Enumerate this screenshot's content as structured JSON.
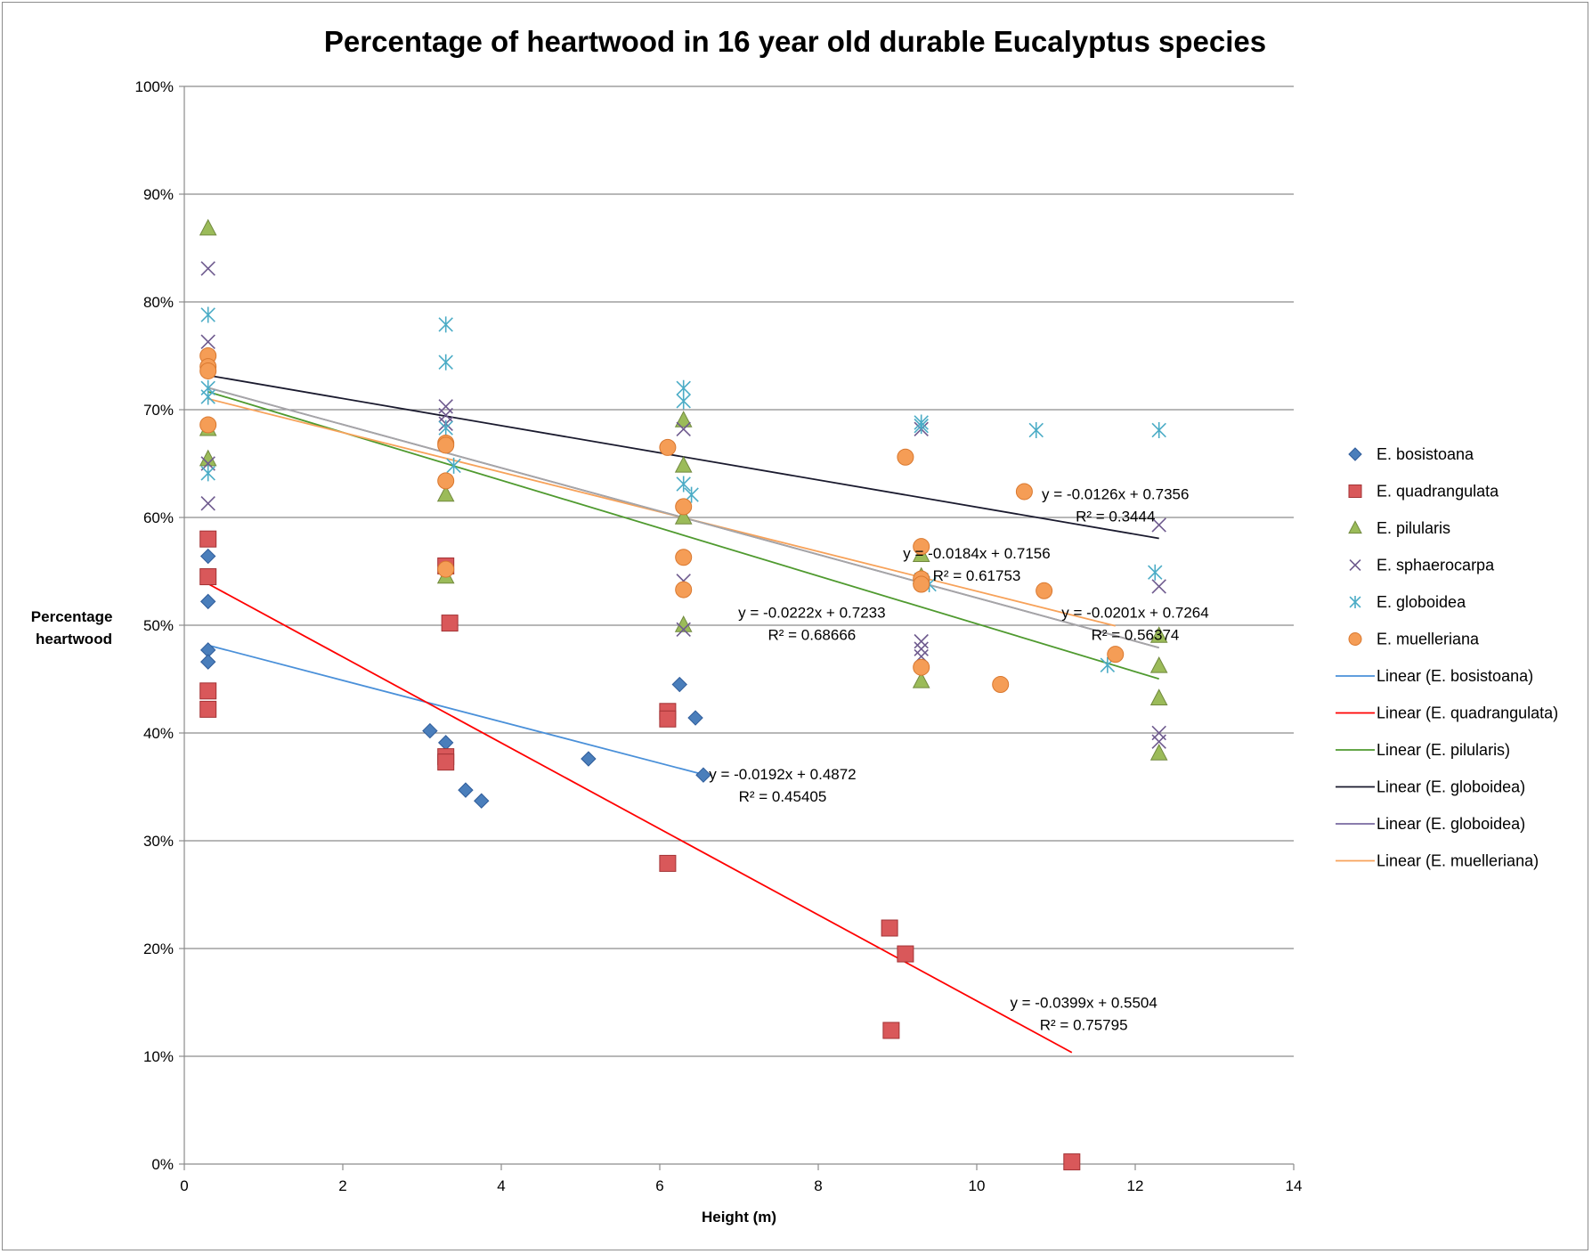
{
  "chart_data": {
    "type": "scatter",
    "title": "Percentage of heartwood in 16 year old durable Eucalyptus species",
    "xlabel": "Height (m)",
    "ylabel_lines": [
      "Percentage",
      "heartwood"
    ],
    "xlim": [
      0,
      14
    ],
    "ylim": [
      0,
      1
    ],
    "x_ticks": [
      0,
      2,
      4,
      6,
      8,
      10,
      12,
      14
    ],
    "x_tick_labels": [
      "0",
      "2",
      "4",
      "6",
      "8",
      "10",
      "12",
      "14"
    ],
    "y_ticks": [
      0,
      0.1,
      0.2,
      0.3,
      0.4,
      0.5,
      0.6,
      0.7,
      0.8,
      0.9,
      1.0
    ],
    "y_tick_labels": [
      "0%",
      "10%",
      "20%",
      "30%",
      "40%",
      "50%",
      "60%",
      "70%",
      "80%",
      "90%",
      "100%"
    ],
    "grid": "horizontal",
    "legend_position": "right",
    "series": [
      {
        "name": "E. bosistoana",
        "marker": "diamond",
        "color": "#4a7ebb",
        "stroke": "#2f5c9a",
        "points": [
          [
            0.3,
            0.564
          ],
          [
            0.3,
            0.522
          ],
          [
            0.3,
            0.477
          ],
          [
            0.3,
            0.466
          ],
          [
            3.1,
            0.402
          ],
          [
            3.3,
            0.391
          ],
          [
            3.55,
            0.347
          ],
          [
            3.75,
            0.337
          ],
          [
            5.1,
            0.376
          ],
          [
            6.25,
            0.445
          ],
          [
            6.45,
            0.414
          ],
          [
            6.55,
            0.361
          ]
        ]
      },
      {
        "name": "E. quadrangulata",
        "marker": "square",
        "color": "#d9585a",
        "stroke": "#a33335",
        "points": [
          [
            0.3,
            0.58
          ],
          [
            0.3,
            0.545
          ],
          [
            0.3,
            0.439
          ],
          [
            0.3,
            0.422
          ],
          [
            3.3,
            0.555
          ],
          [
            3.35,
            0.502
          ],
          [
            3.3,
            0.378
          ],
          [
            3.3,
            0.373
          ],
          [
            6.1,
            0.42
          ],
          [
            6.1,
            0.413
          ],
          [
            6.1,
            0.279
          ],
          [
            8.9,
            0.219
          ],
          [
            9.1,
            0.195
          ],
          [
            8.92,
            0.124
          ],
          [
            11.2,
            0.002
          ]
        ]
      },
      {
        "name": "E. pilularis",
        "marker": "triangle",
        "color": "#9bbb59",
        "stroke": "#71893f",
        "points": [
          [
            0.3,
            0.868
          ],
          [
            0.3,
            0.682
          ],
          [
            0.3,
            0.654
          ],
          [
            3.3,
            0.621
          ],
          [
            3.3,
            0.545
          ],
          [
            6.3,
            0.69
          ],
          [
            6.3,
            0.648
          ],
          [
            6.3,
            0.6
          ],
          [
            6.3,
            0.5
          ],
          [
            9.3,
            0.565
          ],
          [
            9.3,
            0.545
          ],
          [
            9.3,
            0.448
          ],
          [
            12.3,
            0.49
          ],
          [
            12.3,
            0.462
          ],
          [
            12.3,
            0.432
          ],
          [
            12.3,
            0.381
          ]
        ]
      },
      {
        "name": "E. sphaerocarpa",
        "marker": "x",
        "color": "#6e5a8e",
        "stroke": "#6e5a8e",
        "points": [
          [
            0.3,
            0.831
          ],
          [
            0.3,
            0.763
          ],
          [
            0.3,
            0.65
          ],
          [
            0.3,
            0.613
          ],
          [
            3.3,
            0.703
          ],
          [
            3.3,
            0.695
          ],
          [
            3.3,
            0.687
          ],
          [
            6.3,
            0.682
          ],
          [
            6.3,
            0.541
          ],
          [
            6.3,
            0.496
          ],
          [
            9.3,
            0.682
          ],
          [
            9.3,
            0.485
          ],
          [
            9.3,
            0.478
          ],
          [
            9.3,
            0.471
          ],
          [
            12.3,
            0.593
          ],
          [
            12.3,
            0.536
          ],
          [
            12.3,
            0.4
          ],
          [
            12.3,
            0.392
          ]
        ]
      },
      {
        "name": "E. globoidea",
        "marker": "star",
        "color": "#4bacc6",
        "stroke": "#4bacc6",
        "points": [
          [
            0.3,
            0.788
          ],
          [
            0.3,
            0.72
          ],
          [
            0.3,
            0.712
          ],
          [
            0.3,
            0.641
          ],
          [
            3.3,
            0.779
          ],
          [
            3.3,
            0.744
          ],
          [
            3.4,
            0.648
          ],
          [
            3.3,
            0.683
          ],
          [
            6.3,
            0.72
          ],
          [
            6.3,
            0.708
          ],
          [
            6.3,
            0.631
          ],
          [
            6.4,
            0.621
          ],
          [
            9.3,
            0.688
          ],
          [
            9.3,
            0.685
          ],
          [
            9.3,
            0.542
          ],
          [
            9.4,
            0.538
          ],
          [
            10.75,
            0.681
          ],
          [
            11.65,
            0.463
          ],
          [
            12.25,
            0.549
          ],
          [
            12.3,
            0.681
          ]
        ]
      },
      {
        "name": "E. muelleriana",
        "marker": "circle",
        "color": "#f59d56",
        "stroke": "#d9782f",
        "points": [
          [
            0.3,
            0.75
          ],
          [
            0.3,
            0.74
          ],
          [
            0.3,
            0.736
          ],
          [
            0.3,
            0.686
          ],
          [
            3.3,
            0.669
          ],
          [
            3.3,
            0.667
          ],
          [
            3.3,
            0.634
          ],
          [
            3.3,
            0.552
          ],
          [
            6.1,
            0.665
          ],
          [
            6.3,
            0.61
          ],
          [
            6.3,
            0.563
          ],
          [
            6.3,
            0.533
          ],
          [
            9.1,
            0.656
          ],
          [
            9.3,
            0.573
          ],
          [
            9.3,
            0.543
          ],
          [
            9.3,
            0.538
          ],
          [
            9.3,
            0.461
          ],
          [
            10.3,
            0.445
          ],
          [
            10.6,
            0.624
          ],
          [
            10.85,
            0.532
          ],
          [
            11.75,
            0.473
          ]
        ]
      }
    ],
    "trendlines": [
      {
        "name": "Linear (E. bosistoana)",
        "color": "#4a90d9",
        "slope": -0.0192,
        "intercept": 0.4872,
        "x_range": [
          0.3,
          6.55
        ]
      },
      {
        "name": "Linear (E. quadrangulata)",
        "color": "#ff0000",
        "slope": -0.0399,
        "intercept": 0.5504,
        "x_range": [
          0.3,
          11.2
        ]
      },
      {
        "name": "Linear (E. pilularis)",
        "color": "#4f9a2f",
        "slope": -0.0222,
        "intercept": 0.7233,
        "x_range": [
          0.3,
          12.3
        ]
      },
      {
        "name": "Linear (E. globoidea)",
        "color": "#1a1a2e",
        "slope": -0.0126,
        "intercept": 0.7356,
        "x_range": [
          0.3,
          12.3
        ]
      },
      {
        "name": "Linear (E. globoidea)",
        "color": "#7a6aa0",
        "slope": -0.0201,
        "intercept": 0.7264,
        "x_range": [
          0.3,
          12.3
        ]
      },
      {
        "name": "Linear (E. muelleriana)",
        "color": "#f7a25a",
        "slope": -0.0184,
        "intercept": 0.7156,
        "x_range": [
          0.3,
          11.75
        ]
      },
      {
        "name": "",
        "color": "#a6a6a6",
        "slope": -0.0201,
        "intercept": 0.7264,
        "x_range": [
          0.3,
          12.3
        ]
      }
    ],
    "equation_labels": [
      {
        "equation": "y = -0.0126x + 0.7356",
        "r2": "R² = 0.3444",
        "at": [
          11.75,
          0.617
        ],
        "anchor": "middle"
      },
      {
        "equation": "y = -0.0184x + 0.7156",
        "r2": "R² = 0.61753",
        "at": [
          10.0,
          0.562
        ],
        "anchor": "middle"
      },
      {
        "equation": "y = -0.0222x + 0.7233",
        "r2": "R² = 0.68666",
        "at": [
          7.92,
          0.507
        ],
        "anchor": "middle"
      },
      {
        "equation": "y = -0.0201x + 0.7264",
        "r2": "R² = 0.56374",
        "at": [
          12.0,
          0.507
        ],
        "anchor": "middle"
      },
      {
        "equation": "y = -0.0192x + 0.4872",
        "r2": "R² = 0.45405",
        "at": [
          7.55,
          0.357
        ],
        "anchor": "middle"
      },
      {
        "equation": "y = -0.0399x + 0.5504",
        "r2": "R² = 0.75795",
        "at": [
          11.35,
          0.145
        ],
        "anchor": "middle"
      }
    ],
    "legend": [
      {
        "label": "E. bosistoana",
        "kind": "marker",
        "marker": "diamond",
        "color": "#4a7ebb",
        "stroke": "#2f5c9a"
      },
      {
        "label": "E. quadrangulata",
        "kind": "marker",
        "marker": "square",
        "color": "#d9585a",
        "stroke": "#a33335"
      },
      {
        "label": "E. pilularis",
        "kind": "marker",
        "marker": "triangle",
        "color": "#9bbb59",
        "stroke": "#71893f"
      },
      {
        "label": "E. sphaerocarpa",
        "kind": "marker",
        "marker": "x",
        "color": "#6e5a8e",
        "stroke": "#6e5a8e"
      },
      {
        "label": "E. globoidea",
        "kind": "marker",
        "marker": "star",
        "color": "#4bacc6",
        "stroke": "#4bacc6"
      },
      {
        "label": "E. muelleriana",
        "kind": "marker",
        "marker": "circle",
        "color": "#f59d56",
        "stroke": "#d9782f"
      },
      {
        "label": "Linear (E. bosistoana)",
        "kind": "line",
        "color": "#4a90d9"
      },
      {
        "label": "Linear (E. quadrangulata)",
        "kind": "line",
        "color": "#ff0000"
      },
      {
        "label": "Linear (E. pilularis)",
        "kind": "line",
        "color": "#4f9a2f"
      },
      {
        "label": "Linear (E. globoidea)",
        "kind": "line",
        "color": "#1a1a2e"
      },
      {
        "label": "Linear (E. globoidea)",
        "kind": "line",
        "color": "#7a6aa0"
      },
      {
        "label": "Linear (E. muelleriana)",
        "kind": "line",
        "color": "#f7a25a"
      }
    ]
  }
}
